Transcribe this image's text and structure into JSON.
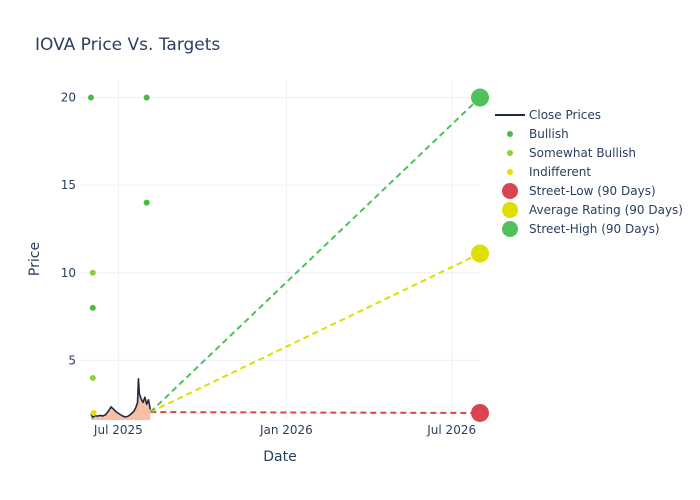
{
  "chart_data": {
    "type": "line",
    "title": "IOVA Price Vs. Targets",
    "xlabel": "Date",
    "ylabel": "Price",
    "x_tick_labels": [
      "Jul 2025",
      "Jan 2026",
      "Jul 2026"
    ],
    "x_tick_dates": [
      "2025-07-01",
      "2026-01-01",
      "2026-07-01"
    ],
    "x_range": [
      "2025-05-20",
      "2026-08-01"
    ],
    "y_range": [
      1.6,
      21
    ],
    "y_ticks": [
      5,
      10,
      15,
      20
    ],
    "grid": true,
    "legend_position": "right",
    "series": [
      {
        "name": "Close Prices",
        "kind": "line",
        "color": "#1f2a44",
        "fill_color": "#f7b89a",
        "points": [
          [
            "2025-06-01",
            1.95
          ],
          [
            "2025-06-03",
            1.75
          ],
          [
            "2025-06-05",
            1.85
          ],
          [
            "2025-06-08",
            1.82
          ],
          [
            "2025-06-11",
            1.86
          ],
          [
            "2025-06-14",
            1.83
          ],
          [
            "2025-06-17",
            1.9
          ],
          [
            "2025-06-20",
            2.1
          ],
          [
            "2025-06-23",
            2.35
          ],
          [
            "2025-06-26",
            2.2
          ],
          [
            "2025-06-29",
            2.05
          ],
          [
            "2025-07-02",
            1.95
          ],
          [
            "2025-07-05",
            1.85
          ],
          [
            "2025-07-08",
            1.78
          ],
          [
            "2025-07-11",
            1.8
          ],
          [
            "2025-07-14",
            1.9
          ],
          [
            "2025-07-16",
            2.0
          ],
          [
            "2025-07-18",
            2.1
          ],
          [
            "2025-07-20",
            2.3
          ],
          [
            "2025-07-22",
            2.6
          ],
          [
            "2025-07-23",
            3.95
          ],
          [
            "2025-07-24",
            3.1
          ],
          [
            "2025-07-26",
            2.8
          ],
          [
            "2025-07-28",
            2.6
          ],
          [
            "2025-07-30",
            2.9
          ],
          [
            "2025-08-01",
            2.5
          ],
          [
            "2025-08-03",
            2.75
          ],
          [
            "2025-08-05",
            2.2
          ]
        ]
      },
      {
        "name": "Bullish",
        "kind": "markers",
        "color": "#4cb944",
        "points": [
          [
            "2025-06-01",
            20
          ],
          [
            "2025-08-01",
            20
          ],
          [
            "2025-08-01",
            14
          ],
          [
            "2025-06-03",
            8
          ]
        ]
      },
      {
        "name": "Somewhat Bullish",
        "kind": "markers",
        "color": "#8dd13a",
        "points": [
          [
            "2025-06-03",
            10
          ],
          [
            "2025-06-03",
            4
          ]
        ]
      },
      {
        "name": "Indifferent",
        "kind": "markers",
        "color": "#e6e000",
        "points": [
          [
            "2025-06-04",
            2.0
          ]
        ]
      },
      {
        "name": "Street-Low (90 Days)",
        "kind": "target",
        "color": "#d9454f",
        "start": [
          "2025-08-05",
          2.05
        ],
        "end": [
          "2026-08-01",
          2.0
        ]
      },
      {
        "name": "Average Rating (90 Days)",
        "kind": "target",
        "color": "#dede00",
        "start": [
          "2025-08-05",
          2.05
        ],
        "end": [
          "2026-08-01",
          11.1
        ]
      },
      {
        "name": "Street-High (90 Days)",
        "kind": "target",
        "color": "#4fc15a",
        "start": [
          "2025-08-05",
          2.05
        ],
        "end": [
          "2026-08-01",
          20.0
        ]
      }
    ]
  }
}
